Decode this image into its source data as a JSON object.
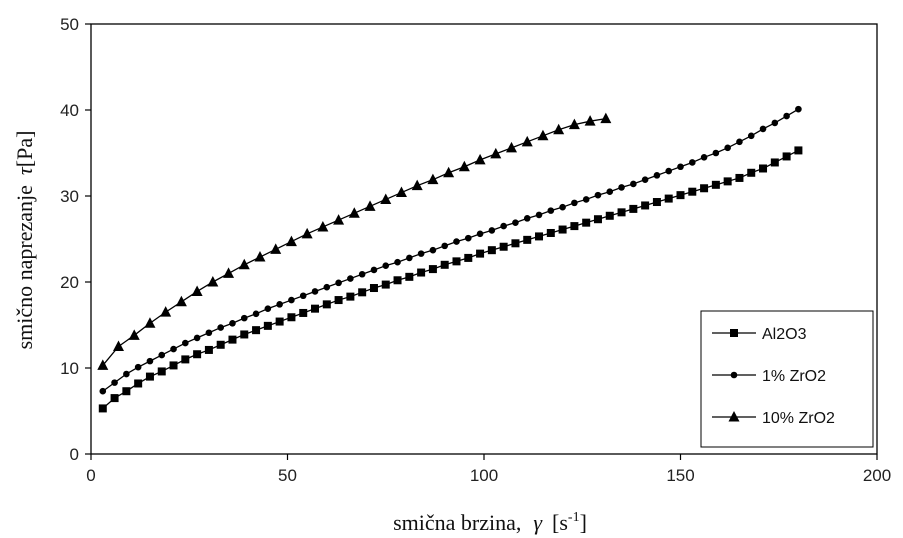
{
  "chart_data": {
    "type": "line",
    "xlabel": "smična brzina, γ [s-1]",
    "xlabel_parts": {
      "text": "smična  brzina,",
      "symbol": "γ",
      "unit_open": "[s",
      "unit_sup": "-1",
      "unit_close": "]"
    },
    "ylabel": "smično naprezanje τ[Pa]",
    "ylabel_parts": {
      "text": "smično  naprezanje",
      "symbol": "τ",
      "unit": "[Pa]"
    },
    "xlim": [
      0,
      200
    ],
    "ylim": [
      0,
      50
    ],
    "xticks": [
      0,
      50,
      100,
      150,
      200
    ],
    "yticks": [
      0,
      10,
      20,
      30,
      40,
      50
    ],
    "grid": false,
    "legend_position": "bottom-right",
    "series": [
      {
        "name": "Al2O3",
        "marker": "square",
        "color": "#000000",
        "x": [
          3,
          6,
          9,
          12,
          15,
          18,
          21,
          24,
          27,
          30,
          33,
          36,
          39,
          42,
          45,
          48,
          51,
          54,
          57,
          60,
          63,
          66,
          69,
          72,
          75,
          78,
          81,
          84,
          87,
          90,
          93,
          96,
          99,
          102,
          105,
          108,
          111,
          114,
          117,
          120,
          123,
          126,
          129,
          132,
          135,
          138,
          141,
          144,
          147,
          150,
          153,
          156,
          159,
          162,
          165,
          168,
          171,
          174,
          177,
          180
        ],
        "y": [
          5.3,
          6.5,
          7.3,
          8.2,
          9.0,
          9.6,
          10.3,
          11.0,
          11.6,
          12.1,
          12.7,
          13.3,
          13.9,
          14.4,
          14.9,
          15.4,
          15.9,
          16.4,
          16.9,
          17.4,
          17.9,
          18.3,
          18.8,
          19.3,
          19.7,
          20.2,
          20.6,
          21.1,
          21.5,
          22.0,
          22.4,
          22.8,
          23.3,
          23.7,
          24.1,
          24.5,
          24.9,
          25.3,
          25.7,
          26.1,
          26.5,
          26.9,
          27.3,
          27.7,
          28.1,
          28.5,
          28.9,
          29.3,
          29.7,
          30.1,
          30.5,
          30.9,
          31.3,
          31.7,
          32.1,
          32.7,
          33.2,
          33.9,
          34.6,
          35.3
        ]
      },
      {
        "name": "1% ZrO2",
        "marker": "circle",
        "color": "#000000",
        "x": [
          3,
          6,
          9,
          12,
          15,
          18,
          21,
          24,
          27,
          30,
          33,
          36,
          39,
          42,
          45,
          48,
          51,
          54,
          57,
          60,
          63,
          66,
          69,
          72,
          75,
          78,
          81,
          84,
          87,
          90,
          93,
          96,
          99,
          102,
          105,
          108,
          111,
          114,
          117,
          120,
          123,
          126,
          129,
          132,
          135,
          138,
          141,
          144,
          147,
          150,
          153,
          156,
          159,
          162,
          165,
          168,
          171,
          174,
          177,
          180
        ],
        "y": [
          7.3,
          8.3,
          9.3,
          10.1,
          10.8,
          11.5,
          12.2,
          12.9,
          13.5,
          14.1,
          14.7,
          15.2,
          15.8,
          16.3,
          16.9,
          17.4,
          17.9,
          18.4,
          18.9,
          19.4,
          19.9,
          20.4,
          20.9,
          21.4,
          21.9,
          22.3,
          22.8,
          23.3,
          23.7,
          24.2,
          24.7,
          25.1,
          25.6,
          26.0,
          26.5,
          26.9,
          27.4,
          27.8,
          28.3,
          28.7,
          29.2,
          29.6,
          30.1,
          30.5,
          31.0,
          31.4,
          31.9,
          32.4,
          32.9,
          33.4,
          33.9,
          34.5,
          35.0,
          35.6,
          36.3,
          37.0,
          37.8,
          38.5,
          39.3,
          40.1
        ]
      },
      {
        "name": "10% ZrO2",
        "marker": "triangle",
        "color": "#000000",
        "x": [
          3,
          7,
          11,
          15,
          19,
          23,
          27,
          31,
          35,
          39,
          43,
          47,
          51,
          55,
          59,
          63,
          67,
          71,
          75,
          79,
          83,
          87,
          91,
          95,
          99,
          103,
          107,
          111,
          115,
          119,
          123,
          127,
          131
        ],
        "y": [
          10.3,
          12.5,
          13.8,
          15.2,
          16.5,
          17.7,
          18.9,
          20.0,
          21.0,
          22.0,
          22.9,
          23.8,
          24.7,
          25.6,
          26.4,
          27.2,
          28.0,
          28.8,
          29.6,
          30.4,
          31.2,
          31.9,
          32.7,
          33.4,
          34.2,
          34.9,
          35.6,
          36.3,
          37.0,
          37.7,
          38.3,
          38.7,
          39.0
        ]
      }
    ]
  }
}
